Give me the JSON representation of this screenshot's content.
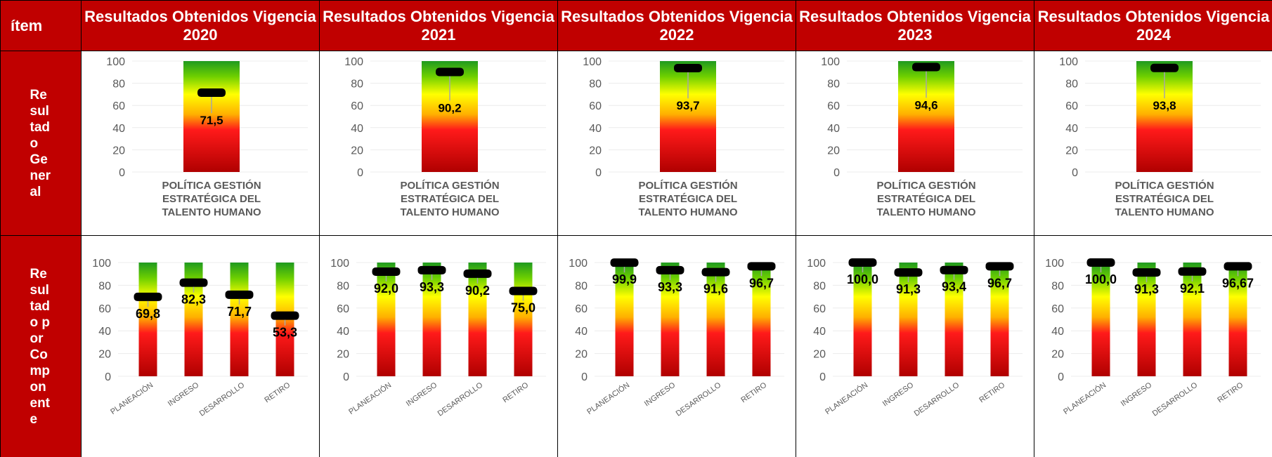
{
  "header": {
    "cells": [
      "ítem",
      "Resultados Obtenidos Vigencia 2020",
      "Resultados Obtenidos Vigencia 2021",
      "Resultados Obtenidos Vigencia 2022",
      "Resultados Obtenidos Vigencia 2023",
      "Resultados Obtenidos Vigencia 2024"
    ]
  },
  "rows": [
    {
      "label": "Resultado General"
    },
    {
      "label": "Resultado por Componente"
    }
  ],
  "chart_data": [
    {
      "type": "bar",
      "categories": [
        "POLÍTICA GESTIÓN ESTRATÉGICA DEL TALENTO HUMANO"
      ],
      "values": [
        71.5
      ],
      "value_labels": [
        "71,5"
      ],
      "ylim": [
        0,
        100
      ],
      "yticks": [
        0,
        20,
        40,
        60,
        80,
        100
      ],
      "grid": true
    },
    {
      "type": "bar",
      "categories": [
        "POLÍTICA GESTIÓN ESTRATÉGICA DEL TALENTO HUMANO"
      ],
      "values": [
        90.2
      ],
      "value_labels": [
        "90,2"
      ],
      "ylim": [
        0,
        100
      ],
      "yticks": [
        0,
        20,
        40,
        60,
        80,
        100
      ],
      "grid": true
    },
    {
      "type": "bar",
      "categories": [
        "POLÍTICA GESTIÓN ESTRATÉGICA DEL TALENTO HUMANO"
      ],
      "values": [
        93.7
      ],
      "value_labels": [
        "93,7"
      ],
      "ylim": [
        0,
        100
      ],
      "yticks": [
        0,
        20,
        40,
        60,
        80,
        100
      ],
      "grid": true
    },
    {
      "type": "bar",
      "categories": [
        "POLÍTICA GESTIÓN ESTRATÉGICA DEL TALENTO HUMANO"
      ],
      "values": [
        94.6
      ],
      "value_labels": [
        "94,6"
      ],
      "ylim": [
        0,
        100
      ],
      "yticks": [
        0,
        20,
        40,
        60,
        80,
        100
      ],
      "grid": true
    },
    {
      "type": "bar",
      "categories": [
        "POLÍTICA GESTIÓN ESTRATÉGICA DEL TALENTO HUMANO"
      ],
      "values": [
        93.8
      ],
      "value_labels": [
        "93,8"
      ],
      "ylim": [
        0,
        100
      ],
      "yticks": [
        0,
        20,
        40,
        60,
        80,
        100
      ],
      "grid": true
    },
    {
      "type": "bar",
      "categories": [
        "PLANEACIÓN",
        "INGRESO",
        "DESARROLLO",
        "RETIRO"
      ],
      "values": [
        69.8,
        82.3,
        71.7,
        53.3
      ],
      "value_labels": [
        "69,8",
        "82,3",
        "71,7",
        "53,3"
      ],
      "ylim": [
        0,
        100
      ],
      "yticks": [
        0,
        20,
        40,
        60,
        80,
        100
      ],
      "grid": true
    },
    {
      "type": "bar",
      "categories": [
        "PLANEACIÓN",
        "INGRESO",
        "DESARROLLO",
        "RETIRO"
      ],
      "values": [
        92.0,
        93.3,
        90.2,
        75.0
      ],
      "value_labels": [
        "92,0",
        "93,3",
        "90,2",
        "75,0"
      ],
      "ylim": [
        0,
        100
      ],
      "yticks": [
        0,
        20,
        40,
        60,
        80,
        100
      ],
      "grid": true
    },
    {
      "type": "bar",
      "categories": [
        "PLANEACIÓN",
        "INGRESO",
        "DESARROLLO",
        "RETIRO"
      ],
      "values": [
        99.9,
        93.3,
        91.6,
        96.7
      ],
      "value_labels": [
        "99,9",
        "93,3",
        "91,6",
        "96,7"
      ],
      "ylim": [
        0,
        100
      ],
      "yticks": [
        0,
        20,
        40,
        60,
        80,
        100
      ],
      "grid": true
    },
    {
      "type": "bar",
      "categories": [
        "PLANEACIÓN",
        "INGRESO",
        "DESARROLLO",
        "RETIRO"
      ],
      "values": [
        100.0,
        91.3,
        93.4,
        96.7
      ],
      "value_labels": [
        "100,0",
        "91,3",
        "93,4",
        "96,7"
      ],
      "ylim": [
        0,
        100
      ],
      "yticks": [
        0,
        20,
        40,
        60,
        80,
        100
      ],
      "grid": true
    },
    {
      "type": "bar",
      "categories": [
        "PLANEACIÓN",
        "INGRESO",
        "DESARROLLO",
        "RETIRO"
      ],
      "values": [
        100.0,
        91.3,
        92.1,
        96.67
      ],
      "value_labels": [
        "100,0",
        "91,3",
        "92,1",
        "96,67"
      ],
      "ylim": [
        0,
        100
      ],
      "yticks": [
        0,
        20,
        40,
        60,
        80,
        100
      ],
      "grid": true
    }
  ]
}
